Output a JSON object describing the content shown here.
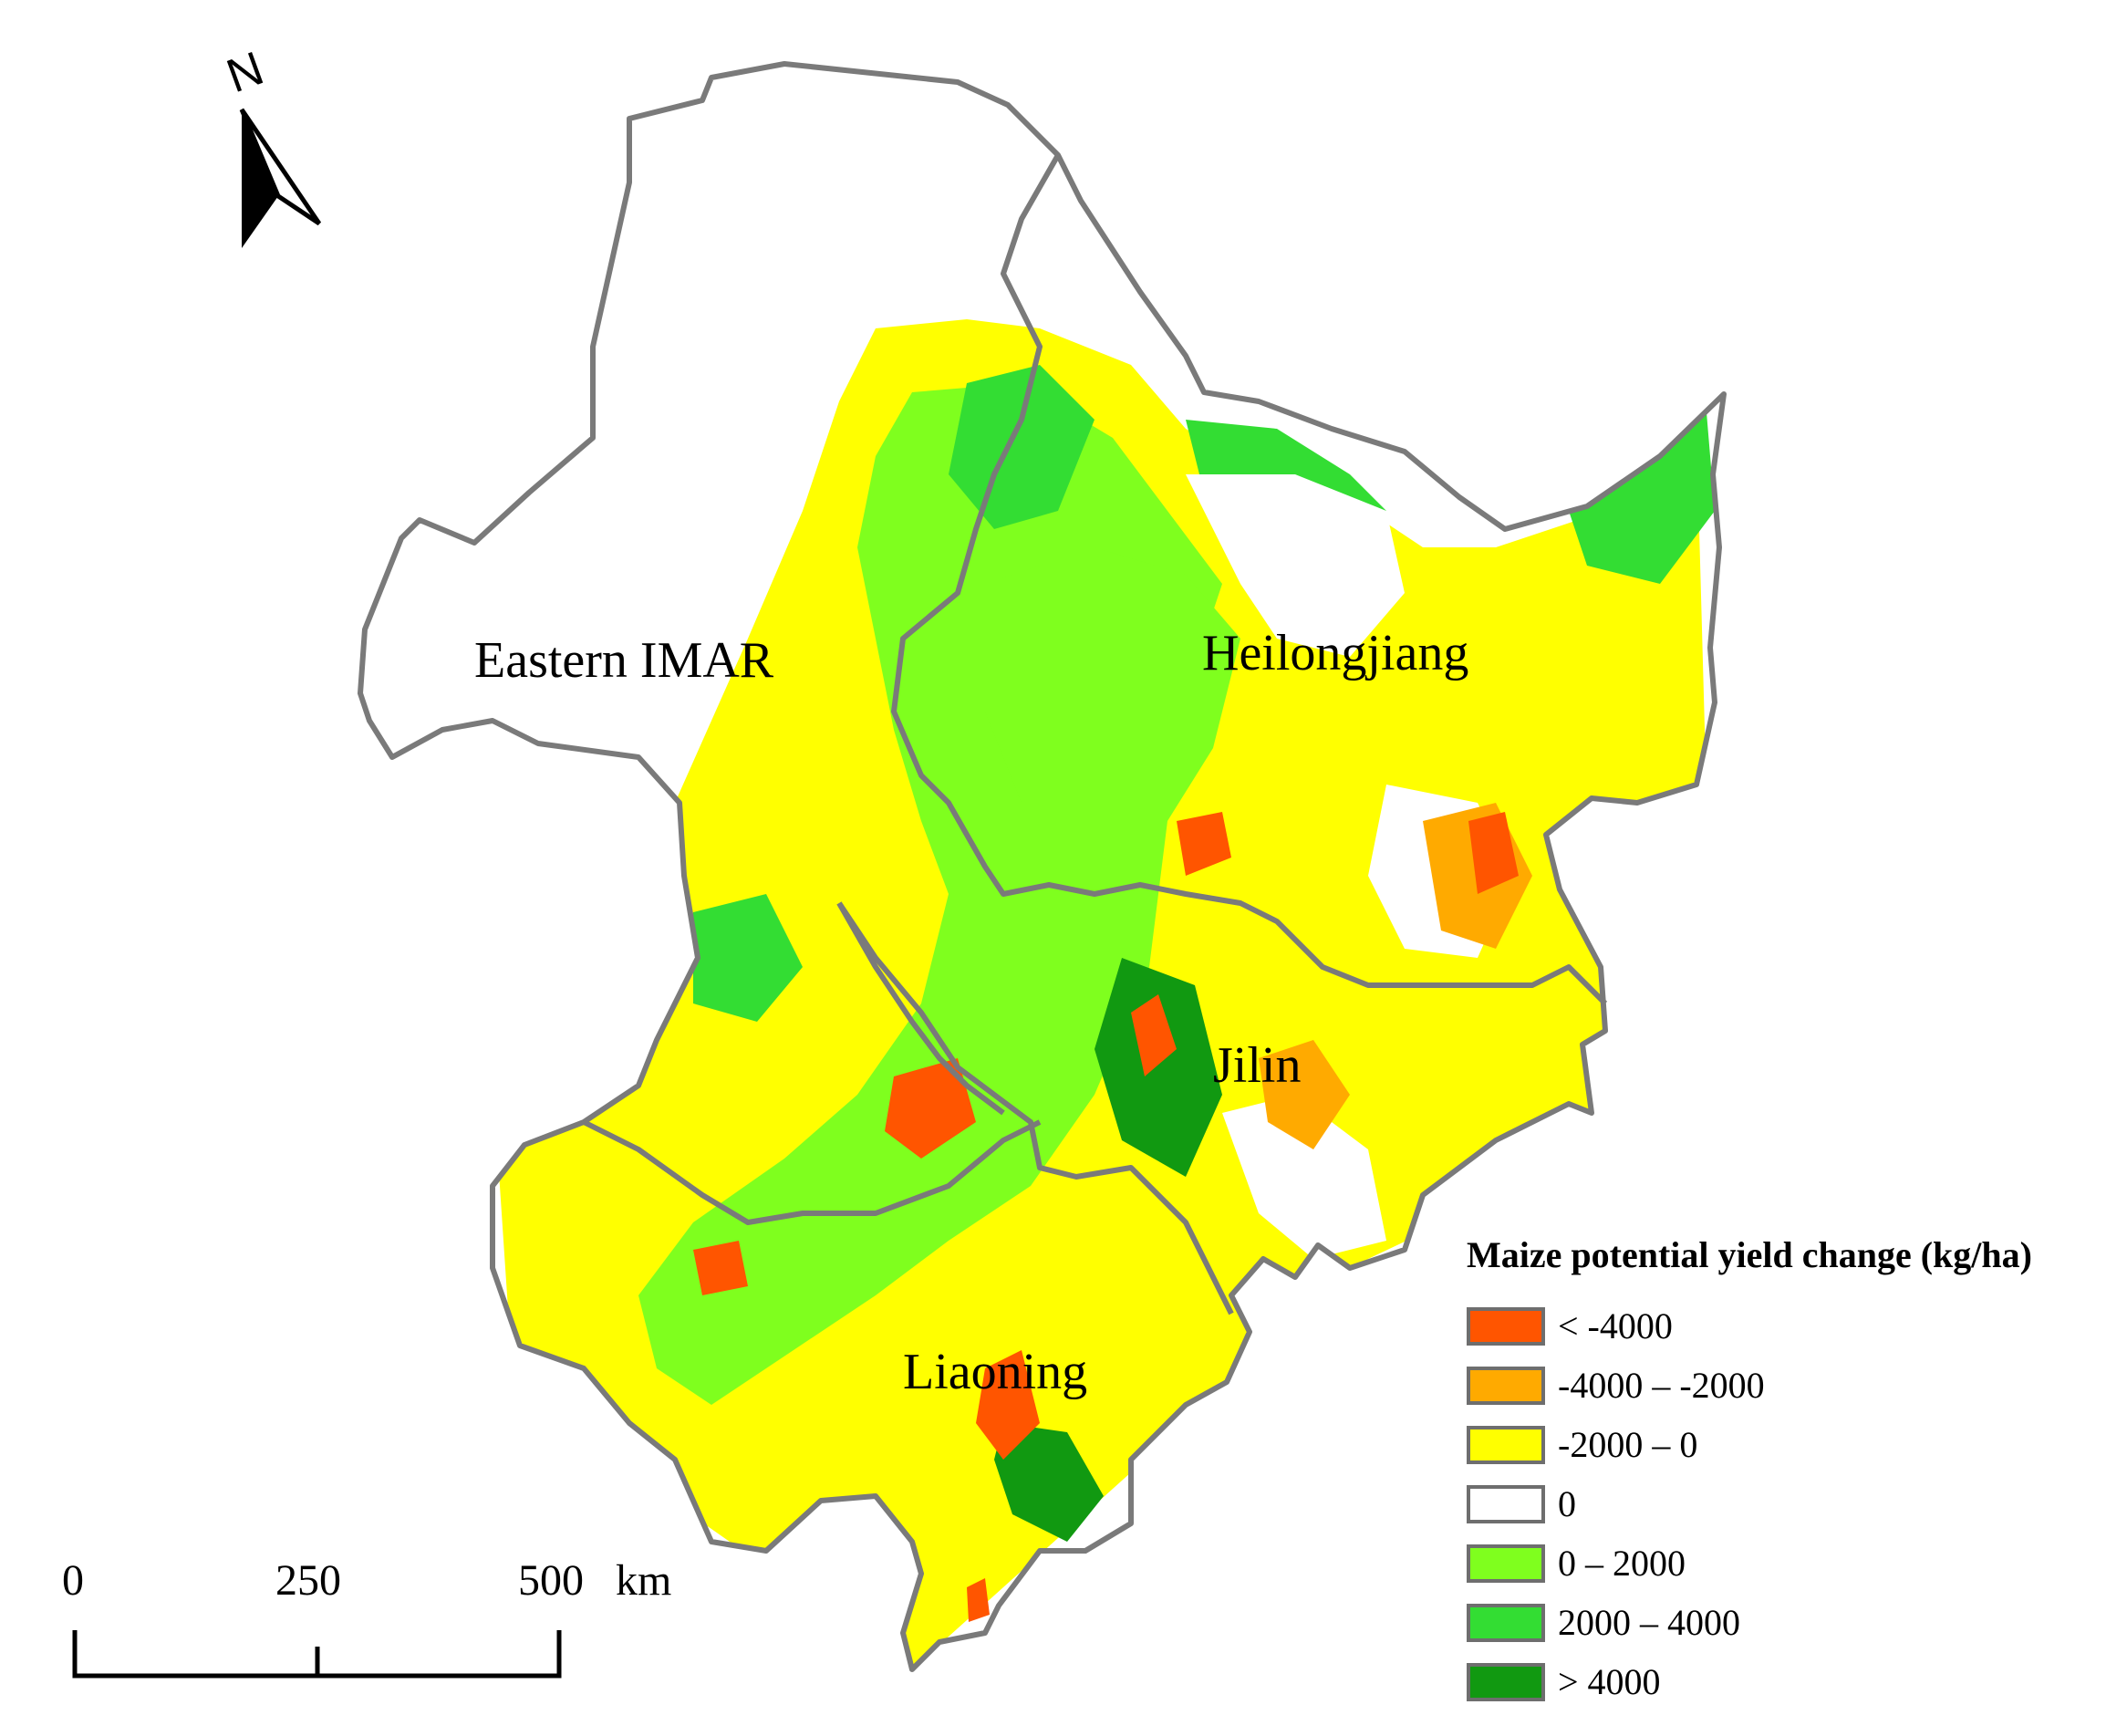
{
  "regions": {
    "imar": "Eastern IMAR",
    "heilongjiang": "Heilongjiang",
    "jilin": "Jilin",
    "liaoning": "Liaoning"
  },
  "north_arrow": {
    "label": "N",
    "icon": "north-arrow-icon"
  },
  "legend": {
    "title": "Maize potential yield change (kg/ha)",
    "items": [
      {
        "label": "< -4000",
        "color": "#FF5500"
      },
      {
        "label": "-4000 – -2000",
        "color": "#FFAA00"
      },
      {
        "label": "-2000 – 0",
        "color": "#FFFF00"
      },
      {
        "label": "0",
        "color": "#FFFFFF"
      },
      {
        "label": "0 – 2000",
        "color": "#7FFF1E"
      },
      {
        "label": "2000 – 4000",
        "color": "#33DD33"
      },
      {
        "label": "> 4000",
        "color": "#119911"
      }
    ]
  },
  "scalebar": {
    "ticks": [
      "0",
      "250",
      "500"
    ],
    "unit": "km"
  }
}
